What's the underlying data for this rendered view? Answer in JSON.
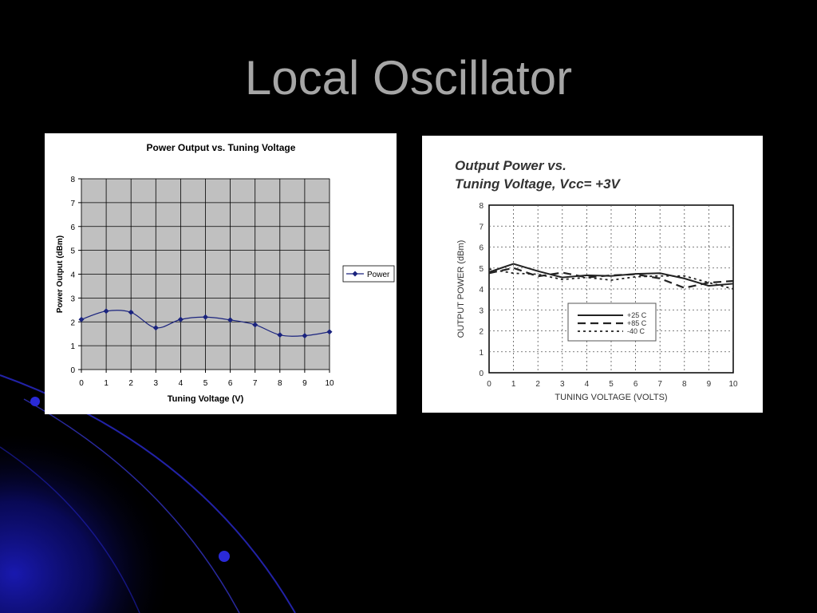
{
  "slide": {
    "title": "Local Oscillator",
    "background_color": "#000000",
    "accent_color": "#1010b0"
  },
  "chart_data": [
    {
      "type": "line",
      "title": "Power Output vs. Tuning Voltage",
      "xlabel": "Tuning Voltage (V)",
      "ylabel": "Power Output (dBm)",
      "xlim": [
        0,
        10
      ],
      "ylim": [
        0,
        8
      ],
      "x_ticks": [
        0,
        1,
        2,
        3,
        4,
        5,
        6,
        7,
        8,
        9,
        10
      ],
      "y_ticks": [
        0,
        1,
        2,
        3,
        4,
        5,
        6,
        7,
        8
      ],
      "grid": true,
      "plot_background": "#c0c0c0",
      "legend": "right",
      "smooth": true,
      "series": [
        {
          "name": "Power",
          "color": "#1a237e",
          "marker": "diamond",
          "x": [
            0,
            1,
            2,
            3,
            4,
            5,
            6,
            7,
            8,
            9,
            10
          ],
          "y": [
            2.1,
            2.45,
            2.4,
            1.75,
            2.1,
            2.2,
            2.08,
            1.88,
            1.45,
            1.42,
            1.58
          ]
        }
      ]
    },
    {
      "type": "line",
      "title_lines": [
        "Output Power vs.",
        "Tuning Voltage, Vcc= +3V"
      ],
      "xlabel": "TUNING VOLTAGE (VOLTS)",
      "ylabel": "OUTPUT POWER (dBm)",
      "xlim": [
        0,
        10
      ],
      "ylim": [
        0,
        8
      ],
      "x_ticks": [
        0,
        1,
        2,
        3,
        4,
        5,
        6,
        7,
        8,
        9,
        10
      ],
      "y_ticks": [
        0,
        1,
        2,
        3,
        4,
        5,
        6,
        7,
        8
      ],
      "grid": "dotted",
      "legend": "center",
      "series": [
        {
          "name": "+25 C",
          "style": "solid",
          "x": [
            0,
            1,
            2,
            3,
            4,
            5,
            6,
            7,
            8,
            9,
            10
          ],
          "y": [
            4.8,
            5.2,
            4.85,
            4.55,
            4.65,
            4.62,
            4.72,
            4.75,
            4.5,
            4.15,
            4.25
          ]
        },
        {
          "name": "+85 C",
          "style": "dashed",
          "x": [
            0,
            1,
            2,
            3,
            4,
            5,
            6,
            7,
            8,
            9,
            10
          ],
          "y": [
            4.75,
            5.0,
            4.6,
            4.78,
            4.55,
            4.65,
            4.7,
            4.5,
            4.05,
            4.3,
            4.38
          ]
        },
        {
          "name": "-40 C",
          "style": "dotted",
          "x": [
            0,
            1,
            2,
            3,
            4,
            5,
            6,
            7,
            8,
            9,
            10
          ],
          "y": [
            4.95,
            4.75,
            4.7,
            4.45,
            4.55,
            4.42,
            4.58,
            4.62,
            4.62,
            4.3,
            4.0
          ]
        }
      ]
    }
  ]
}
